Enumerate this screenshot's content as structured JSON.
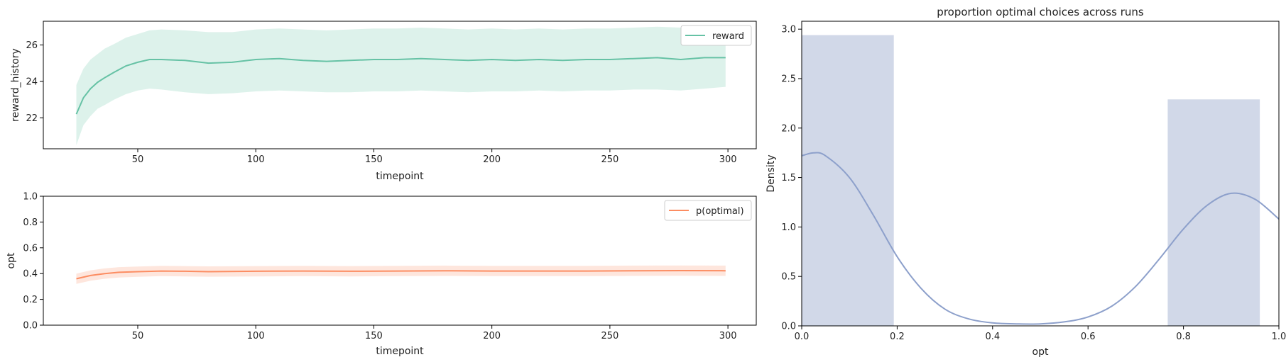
{
  "chart_data": [
    {
      "type": "line",
      "xlabel": "timepoint",
      "ylabel": "reward_history",
      "xlim": [
        10,
        312
      ],
      "ylim": [
        20.3,
        27.3
      ],
      "xticks": [
        50,
        100,
        150,
        200,
        250,
        300
      ],
      "yticks": [
        22,
        24,
        26
      ],
      "legend": {
        "position": "upper right",
        "entries": [
          "reward"
        ]
      },
      "color": "#66c2a5",
      "series": [
        {
          "name": "reward",
          "x": [
            24,
            27,
            30,
            33,
            36,
            40,
            45,
            50,
            55,
            60,
            70,
            80,
            90,
            100,
            110,
            120,
            130,
            140,
            150,
            160,
            170,
            180,
            190,
            200,
            210,
            220,
            230,
            240,
            250,
            260,
            270,
            280,
            290,
            299
          ],
          "mean": [
            22.2,
            23.1,
            23.6,
            23.95,
            24.2,
            24.5,
            24.85,
            25.05,
            25.2,
            25.2,
            25.15,
            25.0,
            25.05,
            25.2,
            25.25,
            25.15,
            25.1,
            25.15,
            25.2,
            25.2,
            25.25,
            25.2,
            25.15,
            25.2,
            25.15,
            25.2,
            25.15,
            25.2,
            25.2,
            25.25,
            25.3,
            25.2,
            25.3,
            25.3
          ],
          "lower": [
            20.5,
            21.6,
            22.1,
            22.5,
            22.7,
            23.0,
            23.3,
            23.5,
            23.6,
            23.55,
            23.4,
            23.3,
            23.35,
            23.45,
            23.5,
            23.45,
            23.4,
            23.4,
            23.45,
            23.45,
            23.5,
            23.45,
            23.4,
            23.45,
            23.45,
            23.5,
            23.45,
            23.5,
            23.5,
            23.55,
            23.55,
            23.5,
            23.6,
            23.7
          ],
          "upper": [
            23.8,
            24.7,
            25.2,
            25.5,
            25.8,
            26.05,
            26.4,
            26.6,
            26.8,
            26.85,
            26.8,
            26.7,
            26.7,
            26.85,
            26.9,
            26.85,
            26.8,
            26.85,
            26.9,
            26.9,
            26.95,
            26.9,
            26.85,
            26.9,
            26.85,
            26.9,
            26.85,
            26.9,
            26.9,
            26.95,
            27.0,
            26.95,
            26.95,
            26.9
          ]
        }
      ]
    },
    {
      "type": "line",
      "xlabel": "timepoint",
      "ylabel": "opt",
      "xlim": [
        10,
        312
      ],
      "ylim": [
        0.0,
        1.0
      ],
      "xticks": [
        50,
        100,
        150,
        200,
        250,
        300
      ],
      "yticks": [
        0.0,
        0.2,
        0.4,
        0.6,
        0.8,
        1.0
      ],
      "legend": {
        "position": "upper right",
        "entries": [
          "p(optimal)"
        ]
      },
      "color": "#fc8d62",
      "series": [
        {
          "name": "p(optimal)",
          "x": [
            24,
            30,
            36,
            42,
            50,
            60,
            70,
            80,
            100,
            120,
            140,
            160,
            180,
            200,
            220,
            240,
            260,
            280,
            299
          ],
          "mean": [
            0.36,
            0.385,
            0.4,
            0.41,
            0.415,
            0.42,
            0.418,
            0.415,
            0.418,
            0.42,
            0.418,
            0.42,
            0.422,
            0.42,
            0.42,
            0.42,
            0.422,
            0.423,
            0.422
          ],
          "lower": [
            0.32,
            0.345,
            0.36,
            0.37,
            0.375,
            0.38,
            0.378,
            0.376,
            0.378,
            0.38,
            0.378,
            0.38,
            0.382,
            0.38,
            0.38,
            0.38,
            0.382,
            0.383,
            0.382
          ],
          "upper": [
            0.4,
            0.425,
            0.44,
            0.45,
            0.455,
            0.46,
            0.458,
            0.456,
            0.458,
            0.46,
            0.458,
            0.46,
            0.462,
            0.46,
            0.46,
            0.46,
            0.462,
            0.463,
            0.462
          ]
        }
      ]
    },
    {
      "type": "bar",
      "title": "proportion optimal choices across runs",
      "xlabel": "opt",
      "ylabel": "Density",
      "xlim": [
        0.0,
        1.0
      ],
      "ylim": [
        0.0,
        3.08
      ],
      "xticks": [
        0.0,
        0.2,
        0.4,
        0.6,
        0.8,
        1.0
      ],
      "yticks": [
        0.0,
        0.5,
        1.0,
        1.5,
        2.0,
        2.5,
        3.0
      ],
      "bar_color": "#d1d8e8",
      "kde_color": "#8da0cb",
      "bars": [
        {
          "x0": 0.0,
          "x1": 0.193,
          "height": 2.94
        },
        {
          "x0": 0.767,
          "x1": 0.96,
          "height": 2.29
        }
      ],
      "kde": {
        "x": [
          0.0,
          0.025,
          0.05,
          0.1,
          0.15,
          0.2,
          0.25,
          0.3,
          0.35,
          0.4,
          0.45,
          0.5,
          0.55,
          0.6,
          0.65,
          0.7,
          0.75,
          0.8,
          0.85,
          0.9,
          0.95,
          1.0
        ],
        "y": [
          1.72,
          1.75,
          1.72,
          1.5,
          1.12,
          0.7,
          0.38,
          0.17,
          0.07,
          0.03,
          0.02,
          0.02,
          0.04,
          0.09,
          0.2,
          0.4,
          0.68,
          0.98,
          1.22,
          1.34,
          1.28,
          1.08
        ]
      }
    }
  ]
}
